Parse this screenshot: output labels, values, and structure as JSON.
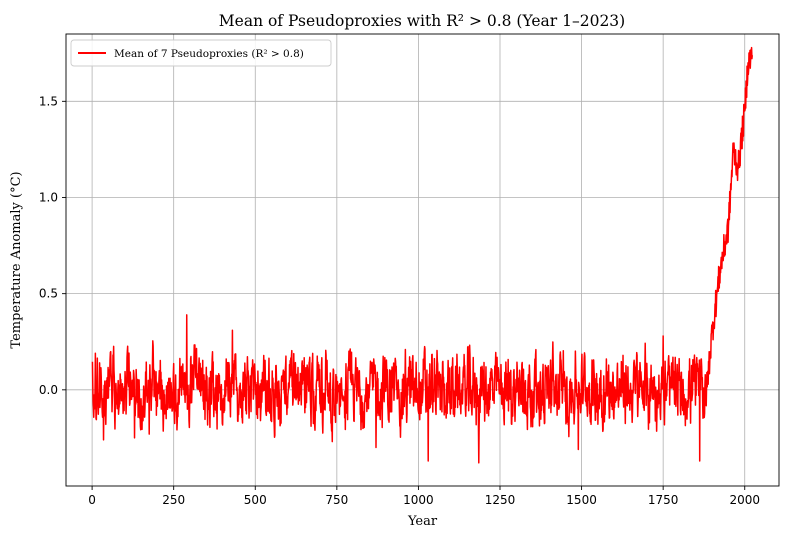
{
  "chart_data": {
    "type": "line",
    "title": "Mean of Pseudoproxies with R² > 0.8 (Year 1–2023)",
    "xlabel": "Year",
    "ylabel": "Temperature Anomaly (°C)",
    "xlim": [
      -80,
      2105
    ],
    "ylim": [
      -0.5,
      1.85
    ],
    "xticks": [
      0,
      250,
      500,
      750,
      1000,
      1250,
      1500,
      1750,
      2000
    ],
    "xtick_labels": [
      "0",
      "250",
      "500",
      "750",
      "1000",
      "1250",
      "1500",
      "1750",
      "2000"
    ],
    "yticks": [
      0.0,
      0.5,
      1.0,
      1.5
    ],
    "ytick_labels": [
      "0.0",
      "0.5",
      "1.0",
      "1.5"
    ],
    "grid": true,
    "legend_position": "top-left",
    "series": [
      {
        "name": "Mean of 7 Pseudoproxies (R² > 0.8)",
        "color": "#ff0000",
        "start_year": 1,
        "end_year": 2023,
        "baseline_mean_years_1_1870": 0.0,
        "baseline_range_years_1_1870": [
          -0.38,
          0.39
        ],
        "anchor_points": [
          {
            "x": 0,
            "y": 0.1
          },
          {
            "x": 10,
            "y": 0.19
          },
          {
            "x": 18,
            "y": -0.08
          },
          {
            "x": 35,
            "y": -0.26
          },
          {
            "x": 130,
            "y": -0.25
          },
          {
            "x": 175,
            "y": -0.23
          },
          {
            "x": 290,
            "y": 0.39
          },
          {
            "x": 430,
            "y": 0.31
          },
          {
            "x": 870,
            "y": -0.3
          },
          {
            "x": 1030,
            "y": -0.37
          },
          {
            "x": 1185,
            "y": -0.38
          },
          {
            "x": 1490,
            "y": -0.31
          },
          {
            "x": 1750,
            "y": 0.28
          },
          {
            "x": 1862,
            "y": -0.37
          },
          {
            "x": 1900,
            "y": 0.3
          },
          {
            "x": 1925,
            "y": 0.63
          },
          {
            "x": 1950,
            "y": 0.85
          },
          {
            "x": 1965,
            "y": 1.25
          },
          {
            "x": 1980,
            "y": 1.15
          },
          {
            "x": 2000,
            "y": 1.45
          },
          {
            "x": 2010,
            "y": 1.7
          },
          {
            "x": 2023,
            "y": 1.74
          }
        ]
      }
    ]
  }
}
